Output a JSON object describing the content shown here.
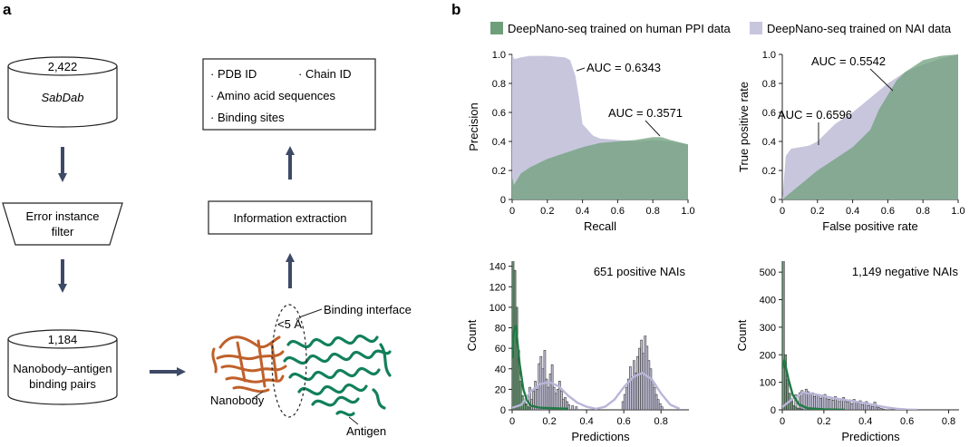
{
  "panel_a": {
    "label": "a",
    "sabdab": {
      "count": "2,422",
      "name": "SabDab"
    },
    "filter_label_1": "Error instance",
    "filter_label_2": "filter",
    "pairs": {
      "count": "1,184",
      "line1": "Nanobody–antigen",
      "line2": "binding pairs"
    },
    "info_box": {
      "pdb": "· PDB ID",
      "chain": "· Chain ID",
      "aa": "· Amino acid sequences",
      "sites": "· Binding sites"
    },
    "extraction": "Information extraction",
    "structure": {
      "distance": "<5 Å",
      "interface": "Binding interface",
      "nanobody": "Nanobody",
      "antigen": "Antigen"
    }
  },
  "panel_b": {
    "label": "b",
    "legend": [
      {
        "name": "DeepNano-seq trained on human PPI data",
        "color": "#6f9f7a"
      },
      {
        "name": "DeepNano-seq trained on NAI data",
        "color": "#c8c6dd"
      }
    ],
    "colors": {
      "ppi_fill": "#6f9f7a",
      "nai_fill": "#c8c6dd",
      "overlap_fill": "#93a7a0",
      "ppi_line": "#1f7a44",
      "nai_line": "#b9b6d8",
      "arrow": "#3d4a66"
    }
  },
  "chart_data": [
    {
      "type": "area",
      "xlabel": "Recall",
      "ylabel": "Precision",
      "xlim": [
        0,
        1
      ],
      "ylim": [
        0,
        1
      ],
      "xticks": [
        "0",
        "0.2",
        "0.4",
        "0.6",
        "0.8",
        "1.0"
      ],
      "yticks": [
        "0",
        "0.2",
        "0.4",
        "0.6",
        "0.8",
        "1.0"
      ],
      "annotations": [
        "AUC = 0.6343",
        "AUC = 0.3571"
      ],
      "series": [
        {
          "name": "DeepNano-seq trained on NAI data",
          "x": [
            0,
            0.01,
            0.02,
            0.05,
            0.1,
            0.2,
            0.3,
            0.33,
            0.36,
            0.38,
            0.4,
            0.43,
            0.46,
            0.5,
            0.6,
            0.7,
            0.8,
            0.9,
            1.0
          ],
          "y": [
            1.0,
            0.97,
            0.97,
            0.98,
            0.99,
            0.99,
            0.98,
            0.96,
            0.85,
            0.7,
            0.52,
            0.48,
            0.44,
            0.42,
            0.41,
            0.4,
            0.41,
            0.4,
            0.38
          ]
        },
        {
          "name": "DeepNano-seq trained on human PPI data",
          "x": [
            0,
            0.01,
            0.05,
            0.1,
            0.2,
            0.3,
            0.4,
            0.5,
            0.6,
            0.7,
            0.8,
            0.85,
            0.9,
            1.0
          ],
          "y": [
            0.15,
            0.1,
            0.18,
            0.22,
            0.28,
            0.32,
            0.36,
            0.39,
            0.4,
            0.41,
            0.43,
            0.43,
            0.41,
            0.38
          ]
        }
      ]
    },
    {
      "type": "area",
      "xlabel": "False positive rate",
      "ylabel": "True positive rate",
      "xlim": [
        0,
        1
      ],
      "ylim": [
        0,
        1
      ],
      "xticks": [
        "0",
        "0.2",
        "0.4",
        "0.6",
        "0.8",
        "1.0"
      ],
      "yticks": [
        "0",
        "0.2",
        "0.4",
        "0.6",
        "0.8",
        "1.0"
      ],
      "annotations": [
        "AUC = 0.5542",
        "AUC = 0.6596"
      ],
      "series": [
        {
          "name": "DeepNano-seq trained on NAI data",
          "x": [
            0,
            0.02,
            0.05,
            0.1,
            0.15,
            0.2,
            0.3,
            0.4,
            0.5,
            0.6,
            0.7,
            0.8,
            0.9,
            1.0
          ],
          "y": [
            0,
            0.3,
            0.35,
            0.36,
            0.37,
            0.4,
            0.52,
            0.6,
            0.7,
            0.8,
            0.88,
            0.93,
            0.97,
            1.0
          ]
        },
        {
          "name": "DeepNano-seq trained on human PPI data",
          "x": [
            0,
            0.1,
            0.2,
            0.3,
            0.4,
            0.5,
            0.55,
            0.6,
            0.65,
            0.7,
            0.8,
            0.9,
            1.0
          ],
          "y": [
            0,
            0.1,
            0.2,
            0.28,
            0.36,
            0.48,
            0.62,
            0.72,
            0.82,
            0.88,
            0.96,
            0.99,
            1.0
          ]
        }
      ]
    },
    {
      "type": "bar",
      "title": "651 positive NAIs",
      "xlabel": "Predictions",
      "ylabel": "Count",
      "xlim": [
        0,
        0.95
      ],
      "ylim": [
        0,
        145
      ],
      "xticks": [
        "0",
        "0.2",
        "0.4",
        "0.6",
        "0.8"
      ],
      "yticks": [
        "0",
        "20",
        "40",
        "60",
        "80",
        "100",
        "120",
        "140"
      ],
      "series": [
        {
          "name": "DeepNano-seq trained on human PPI data",
          "x": [
            0.005,
            0.015,
            0.025,
            0.035,
            0.045,
            0.055,
            0.065,
            0.075,
            0.085,
            0.095
          ],
          "values": [
            146,
            136,
            100,
            58,
            28,
            14,
            8,
            5,
            3,
            2
          ],
          "kde": [
            [
              0,
              50
            ],
            [
              0.01,
              78
            ],
            [
              0.02,
              82
            ],
            [
              0.04,
              45
            ],
            [
              0.06,
              20
            ],
            [
              0.08,
              9
            ],
            [
              0.1,
              4
            ],
            [
              0.15,
              2
            ],
            [
              0.3,
              1
            ]
          ]
        },
        {
          "name": "DeepNano-seq trained on NAI data",
          "x": [
            0.005,
            0.015,
            0.045,
            0.075,
            0.095,
            0.105,
            0.115,
            0.125,
            0.135,
            0.145,
            0.155,
            0.165,
            0.175,
            0.185,
            0.195,
            0.205,
            0.215,
            0.225,
            0.235,
            0.245,
            0.255,
            0.265,
            0.275,
            0.285,
            0.295,
            0.305,
            0.325,
            0.345,
            0.595,
            0.605,
            0.615,
            0.625,
            0.635,
            0.645,
            0.655,
            0.665,
            0.675,
            0.685,
            0.695,
            0.705,
            0.715,
            0.725,
            0.735,
            0.745,
            0.755,
            0.765,
            0.775,
            0.785,
            0.795,
            0.805
          ],
          "values": [
            5,
            3,
            4,
            6,
            22,
            10,
            18,
            28,
            20,
            45,
            52,
            40,
            58,
            30,
            22,
            35,
            44,
            22,
            16,
            20,
            28,
            18,
            10,
            12,
            8,
            5,
            4,
            3,
            8,
            15,
            22,
            30,
            42,
            32,
            48,
            36,
            52,
            60,
            68,
            55,
            72,
            62,
            48,
            40,
            28,
            22,
            15,
            10,
            6,
            3
          ],
          "kde": [
            [
              0,
              2
            ],
            [
              0.05,
              5
            ],
            [
              0.1,
              18
            ],
            [
              0.15,
              25
            ],
            [
              0.2,
              27
            ],
            [
              0.25,
              23
            ],
            [
              0.3,
              14
            ],
            [
              0.35,
              7
            ],
            [
              0.4,
              3
            ],
            [
              0.45,
              1
            ],
            [
              0.5,
              3
            ],
            [
              0.55,
              10
            ],
            [
              0.6,
              22
            ],
            [
              0.65,
              32
            ],
            [
              0.7,
              36
            ],
            [
              0.75,
              30
            ],
            [
              0.8,
              16
            ],
            [
              0.85,
              5
            ],
            [
              0.9,
              1
            ]
          ]
        }
      ]
    },
    {
      "type": "bar",
      "title": "1,149 negative NAIs",
      "xlabel": "Predictions",
      "ylabel": "Count",
      "xlim": [
        0,
        0.85
      ],
      "ylim": [
        0,
        540
      ],
      "xticks": [
        "0",
        "0.2",
        "0.4",
        "0.6",
        "0.8"
      ],
      "yticks": [
        "0",
        "100",
        "200",
        "300",
        "400",
        "500"
      ],
      "series": [
        {
          "name": "DeepNano-seq trained on human PPI data",
          "x": [
            0.005,
            0.015,
            0.025,
            0.035,
            0.045,
            0.055,
            0.065,
            0.075,
            0.085,
            0.095
          ],
          "values": [
            545,
            200,
            110,
            60,
            30,
            15,
            10,
            6,
            4,
            2
          ],
          "kde": [
            [
              0,
              150
            ],
            [
              0.01,
              180
            ],
            [
              0.03,
              110
            ],
            [
              0.05,
              55
            ],
            [
              0.08,
              20
            ],
            [
              0.12,
              6
            ],
            [
              0.2,
              2
            ],
            [
              0.3,
              0
            ]
          ]
        },
        {
          "name": "DeepNano-seq trained on NAI data",
          "x": [
            0.015,
            0.025,
            0.045,
            0.065,
            0.085,
            0.095,
            0.105,
            0.115,
            0.125,
            0.135,
            0.145,
            0.155,
            0.165,
            0.175,
            0.185,
            0.195,
            0.205,
            0.215,
            0.225,
            0.235,
            0.245,
            0.255,
            0.265,
            0.275,
            0.285,
            0.295,
            0.305,
            0.315,
            0.325,
            0.335,
            0.345,
            0.355,
            0.365,
            0.375,
            0.385,
            0.395,
            0.405,
            0.415,
            0.425,
            0.435,
            0.445,
            0.455,
            0.465,
            0.475,
            0.485
          ],
          "values": [
            22,
            30,
            38,
            55,
            62,
            70,
            58,
            75,
            66,
            60,
            62,
            48,
            55,
            52,
            42,
            50,
            56,
            40,
            38,
            45,
            35,
            48,
            40,
            30,
            38,
            45,
            30,
            28,
            36,
            22,
            38,
            28,
            25,
            33,
            18,
            25,
            30,
            15,
            20,
            12,
            28,
            10,
            8,
            5,
            3
          ],
          "kde": [
            [
              0,
              10
            ],
            [
              0.05,
              40
            ],
            [
              0.1,
              62
            ],
            [
              0.15,
              58
            ],
            [
              0.2,
              50
            ],
            [
              0.25,
              42
            ],
            [
              0.3,
              36
            ],
            [
              0.35,
              30
            ],
            [
              0.4,
              24
            ],
            [
              0.45,
              16
            ],
            [
              0.5,
              9
            ],
            [
              0.55,
              4
            ],
            [
              0.6,
              1
            ],
            [
              0.65,
              0
            ]
          ]
        }
      ]
    }
  ]
}
